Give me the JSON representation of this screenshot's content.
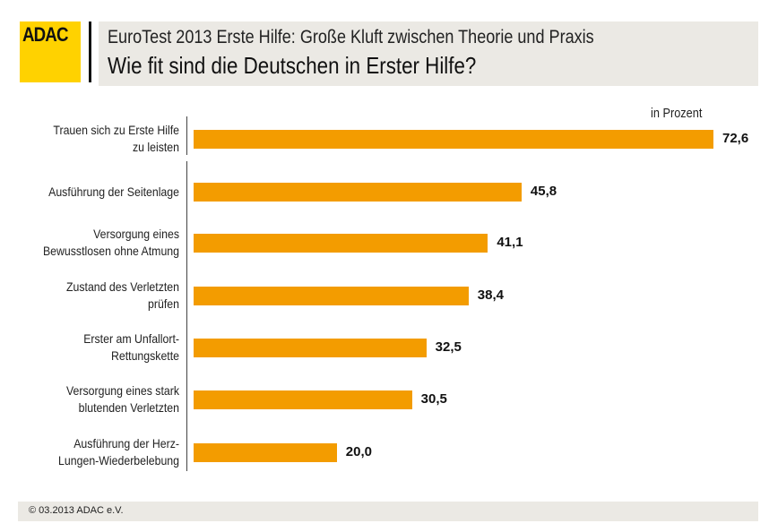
{
  "header": {
    "logo": "ADAC",
    "subtitle": "EuroTest 2013 Erste Hilfe: Große Kluft zwischen Theorie und Praxis",
    "title": "Wie fit sind die Deutschen in Erster Hilfe?"
  },
  "chart_data": {
    "type": "bar",
    "orientation": "horizontal",
    "unit_label": "in Prozent",
    "categories": [
      "Trauen sich zu Erste Hilfe\nzu leisten",
      "Ausführung der Seitenlage",
      "Versorgung eines\nBewusstlosen ohne Atmung",
      "Zustand des Verletzten\nprüfen",
      "Erster am Unfallort-\nRettungskette",
      "Versorgung eines stark\nblutenden Verletzten",
      "Ausführung der Herz-\nLungen-Wiederbelebung"
    ],
    "values": [
      72.6,
      45.8,
      41.1,
      38.4,
      32.5,
      30.5,
      20.0
    ],
    "labels": [
      "72,6",
      "45,8",
      "41,1",
      "38,4",
      "32,5",
      "30,5",
      "20,0"
    ],
    "xlim": [
      0,
      100
    ],
    "grid": false,
    "bar_color": "#f39c00"
  },
  "footer": {
    "text": "© 03.2013  ADAC e.V."
  }
}
